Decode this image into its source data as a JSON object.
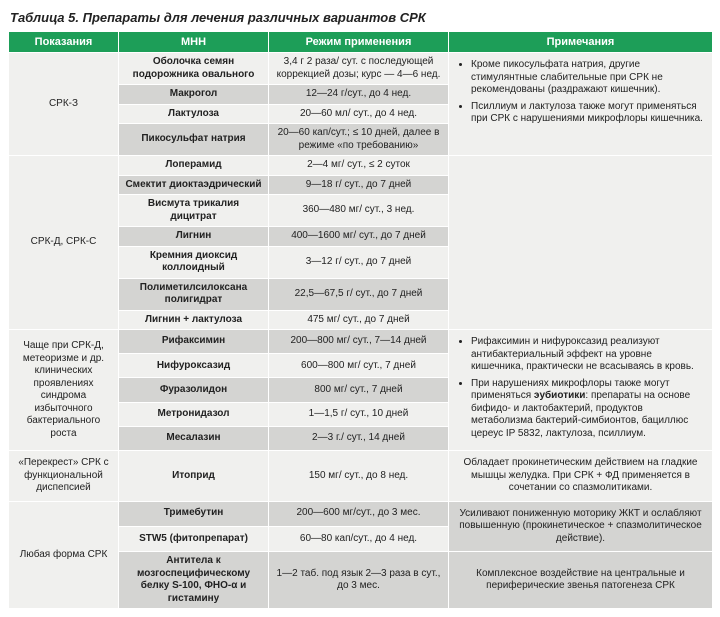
{
  "title": "Таблица 5. Препараты для лечения различных вариантов СРК",
  "headers": [
    "Показания",
    "МНН",
    "Режим применения",
    "Примечания"
  ],
  "colors": {
    "header_bg": "#1d9e58",
    "header_fg": "#ffffff",
    "band_light": "#f0f0ee",
    "band_dark": "#d4d4d2"
  },
  "sections": [
    {
      "indication": "СРК-З",
      "rows": [
        {
          "mnn": "Оболочка семян подорожника овального",
          "bold": true,
          "regimen": "3,4 г 2 раза/ сут. с последующей коррекцией дозы; курс — 4—6 нед."
        },
        {
          "mnn": "Макрогол",
          "bold": true,
          "regimen": "12—24 г/сут., до 4 нед."
        },
        {
          "mnn": "Лактулоза",
          "bold": true,
          "regimen": "20—60 мл/ сут., до 4 нед."
        },
        {
          "mnn": "Пикосульфат натрия",
          "bold": true,
          "regimen": "20—60 кап/сут.; ≤ 10 дней, далее в режиме «по требованию»"
        }
      ],
      "notes": [
        "Кроме пикосульфата натрия, другие стимулянтные слабительные при СРК не рекомендованы (раздражают кишечник).",
        "Псиллиум и лактулоза также могут применяться при СРК с нарушениями микрофлоры кишечника."
      ]
    },
    {
      "indication": "СРК-Д, СРК-С",
      "rows": [
        {
          "mnn": "Лоперамид",
          "bold": true,
          "regimen": "2—4 мг/ сут., ≤ 2 суток"
        },
        {
          "mnn": "Смектит диоктаэдрический",
          "bold": true,
          "regimen": "9—18 г/ сут., до 7 дней"
        },
        {
          "mnn": "Висмута трикалия дицитрат",
          "bold": true,
          "regimen": "360—480 мг/ сут., 3 нед."
        },
        {
          "mnn": "Лигнин",
          "bold": true,
          "regimen": "400—1600 мг/ сут., до 7 дней"
        },
        {
          "mnn": "Кремния диоксид коллоидный",
          "bold": true,
          "regimen": "3—12 г/ сут., до 7 дней"
        },
        {
          "mnn": "Полиметилсилоксана полигидрат",
          "bold": true,
          "regimen": "22,5—67,5 г/ сут., до 7 дней"
        },
        {
          "mnn": "Лигнин + лактулоза",
          "bold": true,
          "regimen": "475 мг/ сут., до 7 дней"
        }
      ],
      "notes": null
    },
    {
      "indication": "Чаще при СРК-Д, метеоризме и др. клинических проявлениях синдрома избыточного бактериального роста",
      "rows": [
        {
          "mnn": "Рифаксимин",
          "bold": true,
          "regimen": "200—800 мг/ сут., 7—14 дней"
        },
        {
          "mnn": "Нифуроксазид",
          "bold": true,
          "regimen": "600—800 мг/ сут., 7 дней"
        },
        {
          "mnn": "Фуразолидон",
          "bold": true,
          "regimen": "800 мг/ сут., 7 дней"
        },
        {
          "mnn": "Метронидазол",
          "bold": true,
          "regimen": "1—1,5 г/ сут., 10 дней"
        },
        {
          "mnn": "Месалазин",
          "bold": true,
          "regimen": "2—3 г./ сут., 14 дней"
        }
      ],
      "notes": [
        "Рифаксимин и нифуроксазид реализуют антибактериальный эффект на уровне кишечника, практически не всасываясь в кровь.",
        "При нарушениях микрофлоры также могут применяться <b>эубиотики</b>: препараты на основе бифидо- и лактобактерий, продуктов метаболизма бактерий-симбионтов, бациллюс цереус IP 5832, лактулоза, псиллиум."
      ]
    },
    {
      "indication": "«Перекрест» СРК с функциональной диспепсией",
      "rows": [
        {
          "mnn": "Итоприд",
          "bold": true,
          "regimen": "150 мг/ сут., до 8 нед."
        }
      ],
      "notes_plain": "Обладает прокинетическим действием на гладкие мышцы желудка. При СРК + ФД применяется в сочетании со спазмолитиками."
    },
    {
      "indication": "Любая форма СРК",
      "rows": [
        {
          "mnn": "Тримебутин",
          "bold": true,
          "regimen": "200—600 мг/сут., до 3 мес.",
          "note": "Усиливают пониженную моторику ЖКТ и ослабляют повышенную (прокинетическое + спазмолитическое действие).",
          "note_span": 2
        },
        {
          "mnn": "STW5 (фитопрепарат)",
          "bold": true,
          "regimen": "60—80 кап/сут., до 4 нед."
        },
        {
          "mnn": "Антитела к мозгоспецифическому белку S-100, ФНО-α и гистамину",
          "bold": true,
          "regimen": "1—2 таб. под язык 2—3 раза в сут., до 3 мес.",
          "note": "Комплексное воздействие на центральные и периферические звенья патогенеза СРК",
          "note_span": 1
        }
      ]
    }
  ]
}
